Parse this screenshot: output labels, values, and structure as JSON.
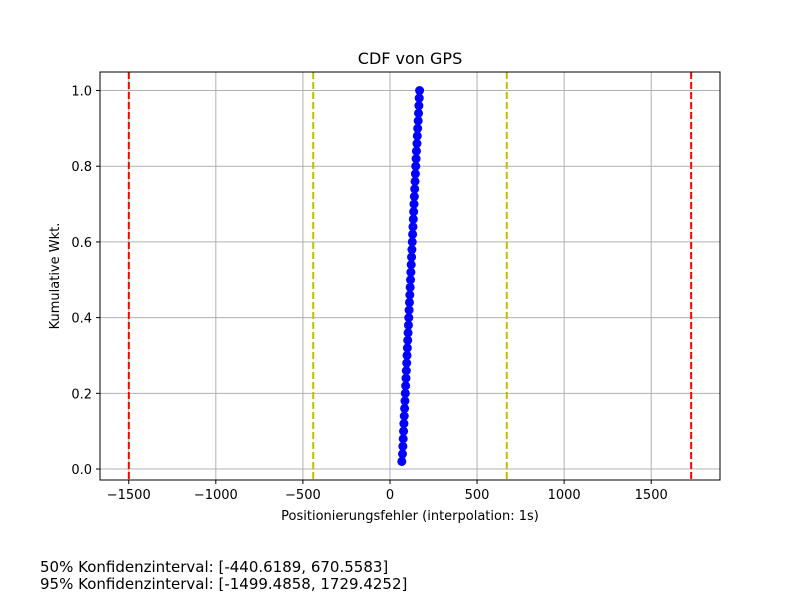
{
  "chart_data": {
    "type": "scatter",
    "title": "CDF von GPS",
    "xlabel": "Positionierungsfehler (interpolation: 1s)",
    "ylabel": "Kumulative Wkt.",
    "xlim": [
      -1665,
      1895
    ],
    "ylim": [
      -0.029,
      1.049
    ],
    "xticks": [
      -1500,
      -1000,
      -500,
      0,
      500,
      1000,
      1500
    ],
    "xtick_labels": [
      "−1500",
      "−1000",
      "−500",
      "0",
      "500",
      "1000",
      "1500"
    ],
    "yticks": [
      0.0,
      0.2,
      0.4,
      0.6,
      0.8,
      1.0
    ],
    "ytick_labels": [
      "0.0",
      "0.2",
      "0.4",
      "0.6",
      "0.8",
      "1.0"
    ],
    "grid": true,
    "series": [
      {
        "marker_color": "#0000ff",
        "x": [
          68,
          72,
          74,
          76,
          78,
          80,
          82,
          84,
          86,
          88,
          90,
          92,
          94,
          96,
          98,
          100,
          102,
          104,
          106,
          108,
          110,
          112,
          114,
          116,
          118,
          120,
          122,
          124,
          126,
          128,
          130,
          132,
          134,
          136,
          138,
          140,
          142,
          144,
          146,
          148,
          150,
          152,
          155,
          157,
          159,
          162,
          164,
          166,
          168,
          170
        ],
        "y": [
          0.02,
          0.04,
          0.06,
          0.08,
          0.1,
          0.12,
          0.14,
          0.16,
          0.18,
          0.2,
          0.22,
          0.24,
          0.26,
          0.28,
          0.3,
          0.32,
          0.34,
          0.36,
          0.38,
          0.4,
          0.42,
          0.44,
          0.46,
          0.48,
          0.5,
          0.52,
          0.54,
          0.56,
          0.58,
          0.6,
          0.62,
          0.64,
          0.66,
          0.68,
          0.7,
          0.72,
          0.74,
          0.76,
          0.78,
          0.8,
          0.82,
          0.84,
          0.86,
          0.88,
          0.9,
          0.92,
          0.94,
          0.96,
          0.98,
          1.0
        ]
      }
    ],
    "vlines": [
      {
        "x": -1499.4858,
        "color": "#ff0000",
        "style": "dashed"
      },
      {
        "x": 1729.4252,
        "color": "#ff0000",
        "style": "dashed"
      },
      {
        "x": -440.6189,
        "color": "#bfbf00",
        "style": "dashed"
      },
      {
        "x": 670.5583,
        "color": "#bfbf00",
        "style": "dashed"
      }
    ]
  },
  "footer": {
    "line_50": "50% Konfidenzinterval: [-440.6189, 670.5583]",
    "line_95": "95% Konfidenzinterval: [-1499.4858, 1729.4252]"
  }
}
